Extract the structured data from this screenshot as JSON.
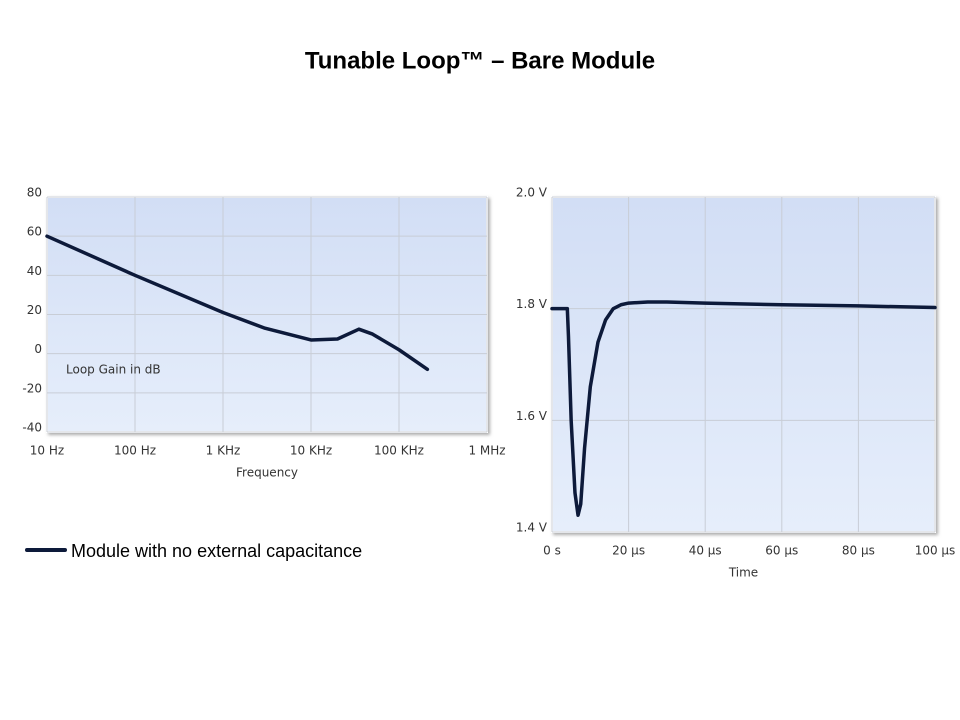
{
  "title": "Tunable Loop™ – Bare Module",
  "chart_data": [
    {
      "type": "line",
      "xscale": "log",
      "x_label": "Frequency",
      "annotation": "Loop Gain in dB",
      "x": [
        10,
        100,
        1000,
        3000,
        10000,
        20000,
        35000,
        50000,
        100000,
        210000
      ],
      "series": [
        {
          "name": "Module with no external capacitance",
          "color": "#0d1a3a",
          "values": [
            60,
            40,
            21,
            13,
            7,
            7.5,
            12.5,
            10,
            2,
            -8
          ]
        }
      ],
      "xlim": [
        10,
        1000000
      ],
      "xticks": [
        {
          "value": 10,
          "label": "10 Hz"
        },
        {
          "value": 100,
          "label": "100 Hz"
        },
        {
          "value": 1000,
          "label": "1 KHz"
        },
        {
          "value": 10000,
          "label": "10 KHz"
        },
        {
          "value": 100000,
          "label": "100 KHz"
        },
        {
          "value": 1000000,
          "label": "1 MHz"
        }
      ],
      "ylim": [
        -40,
        80
      ],
      "yticks": [
        80,
        60,
        40,
        20,
        0,
        -20,
        -40
      ],
      "grid": true
    },
    {
      "type": "line",
      "x_label": "Time",
      "x": [
        0,
        4,
        4.3,
        5,
        6,
        6.8,
        7.5,
        8.5,
        10,
        12,
        14,
        16,
        18,
        20,
        25,
        30,
        40,
        60,
        80,
        100
      ],
      "series": [
        {
          "color": "#0d1a3a",
          "values": [
            1.8,
            1.8,
            1.75,
            1.6,
            1.47,
            1.43,
            1.45,
            1.55,
            1.66,
            1.74,
            1.78,
            1.8,
            1.807,
            1.81,
            1.812,
            1.812,
            1.81,
            1.807,
            1.805,
            1.802
          ]
        }
      ],
      "xlim": [
        0,
        100
      ],
      "xticks": [
        {
          "value": 0,
          "label": "0 s"
        },
        {
          "value": 20,
          "label": "20 µs"
        },
        {
          "value": 40,
          "label": "40 µs"
        },
        {
          "value": 60,
          "label": "60 µs"
        },
        {
          "value": 80,
          "label": "80 µs"
        },
        {
          "value": 100,
          "label": "100 µs"
        }
      ],
      "ylim": [
        1.4,
        2.0
      ],
      "yticks": [
        {
          "value": 1.4,
          "label": "1.4 V"
        },
        {
          "value": 1.6,
          "label": "1.6 V"
        },
        {
          "value": 1.8,
          "label": "1.8 V"
        },
        {
          "value": 2.0,
          "label": "2.0 V"
        }
      ],
      "grid": true
    }
  ]
}
